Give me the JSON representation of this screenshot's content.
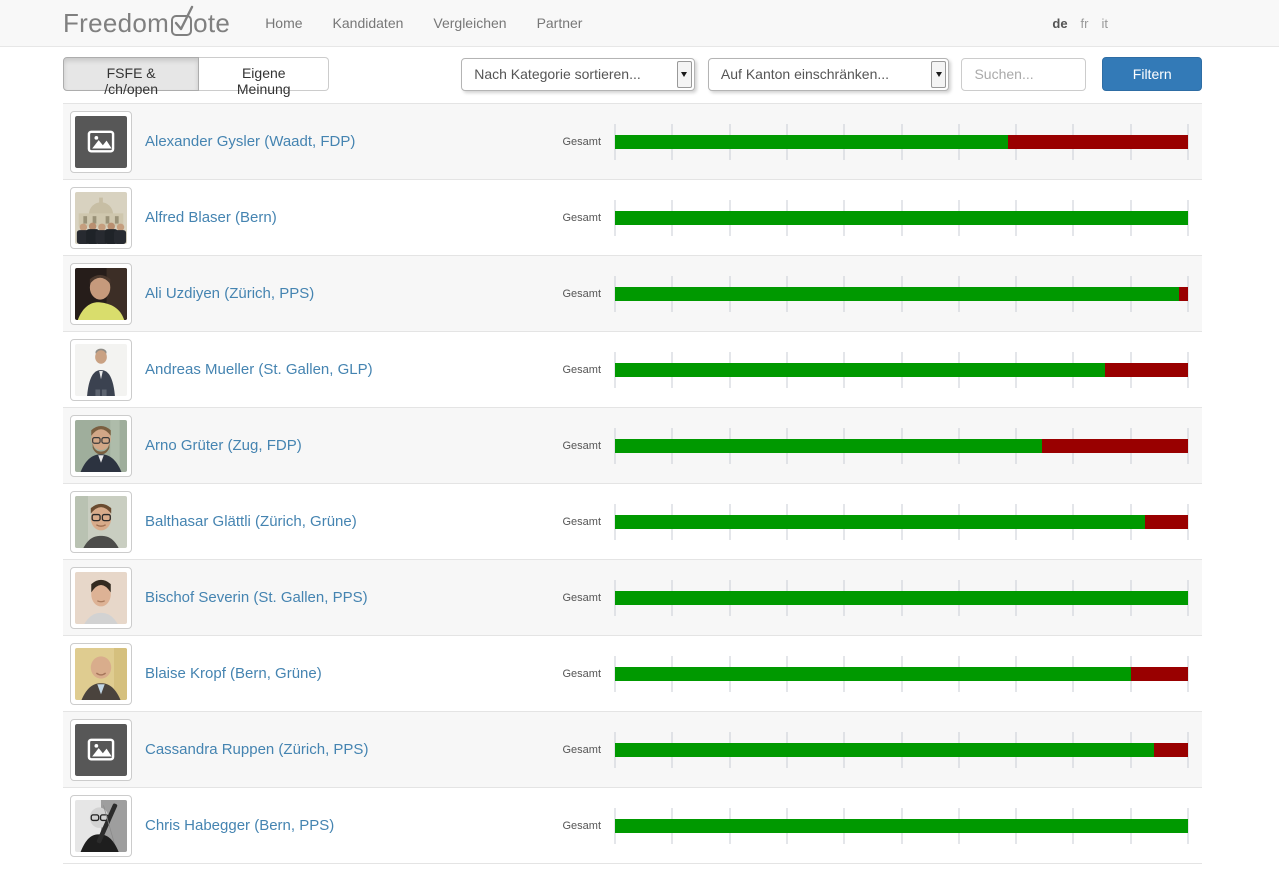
{
  "colors": {
    "bar_green": "#009900",
    "bar_red": "#990000",
    "primary_button": "#337ab7",
    "link_blue": "#4584b1"
  },
  "header": {
    "logo_pre": "Freedom",
    "logo_post": "ote",
    "nav": [
      {
        "label": "Home"
      },
      {
        "label": "Kandidaten"
      },
      {
        "label": "Vergleichen"
      },
      {
        "label": "Partner"
      }
    ],
    "languages": [
      {
        "code": "de",
        "active": true
      },
      {
        "code": "fr",
        "active": false
      },
      {
        "code": "it",
        "active": false
      }
    ]
  },
  "toolbar": {
    "mode_buttons": [
      {
        "label": "FSFE & /ch/open",
        "active": true
      },
      {
        "label": "Eigene Meinung",
        "active": false
      }
    ],
    "category_select_value": "Nach Kategorie sortieren...",
    "canton_select_value": "Auf Kanton einschränken...",
    "search_placeholder": "Suchen...",
    "filter_button_label": "Filtern"
  },
  "list": {
    "score_label": "Gesamt",
    "candidates": [
      {
        "name": "Alexander Gysler (Waadt, FDP)",
        "photo": "placeholder",
        "green_percent": 68.5,
        "red_percent": 31.5
      },
      {
        "name": "Alfred Blaser (Bern)",
        "photo": "group",
        "green_percent": 100,
        "red_percent": 0
      },
      {
        "name": "Ali Uzdiyen (Zürich, PPS)",
        "photo": "portrait-yellow",
        "green_percent": 98.5,
        "red_percent": 1.5
      },
      {
        "name": "Andreas Mueller (St. Gallen, GLP)",
        "photo": "portrait-suit",
        "green_percent": 85.5,
        "red_percent": 14.5
      },
      {
        "name": "Arno Grüter (Zug, FDP)",
        "photo": "portrait-beard",
        "green_percent": 74.5,
        "red_percent": 25.5
      },
      {
        "name": "Balthasar Glättli (Zürich, Grüne)",
        "photo": "portrait-glasses",
        "green_percent": 92.5,
        "red_percent": 7.5
      },
      {
        "name": "Bischof Severin (St. Gallen, PPS)",
        "photo": "portrait-young",
        "green_percent": 100,
        "red_percent": 0
      },
      {
        "name": "Blaise Kropf (Bern, Grüne)",
        "photo": "portrait-bald",
        "green_percent": 90,
        "red_percent": 10
      },
      {
        "name": "Cassandra Ruppen (Zürich, PPS)",
        "photo": "placeholder",
        "green_percent": 94,
        "red_percent": 6
      },
      {
        "name": "Chris Habegger (Bern, PPS)",
        "photo": "portrait-bw",
        "green_percent": 100,
        "red_percent": 0
      }
    ]
  }
}
